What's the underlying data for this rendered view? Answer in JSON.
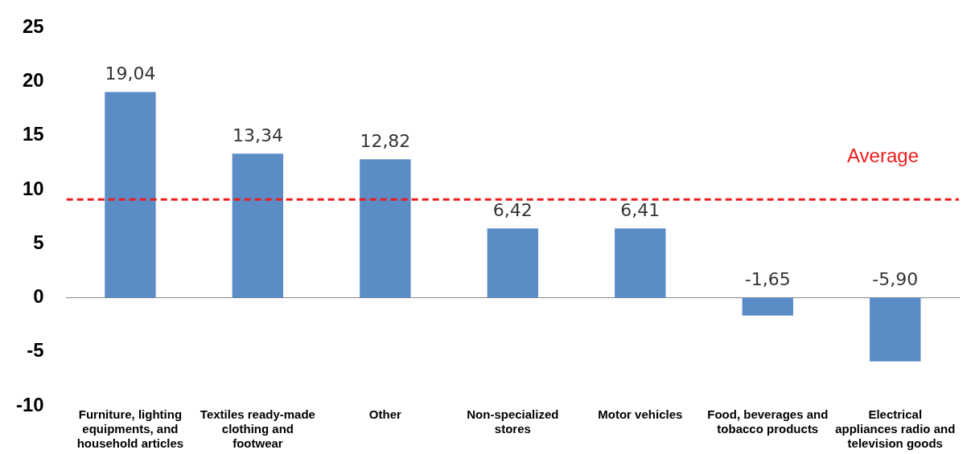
{
  "chart_data": {
    "type": "bar",
    "categories": [
      "Furniture, lighting equipments, and household articles",
      "Textiles ready-made clothing and footwear",
      "Other",
      "Non-specialized stores",
      "Motor vehicles",
      "Food, beverages and tobacco products",
      "Electrical appliances radio and television goods"
    ],
    "values": [
      19.04,
      13.34,
      12.82,
      6.42,
      6.41,
      -1.65,
      -5.9
    ],
    "value_labels": [
      "19,04",
      "13,34",
      "12,82",
      "6,42",
      "6,41",
      "-1,65",
      "-5,90"
    ],
    "color": "#5b8cc6",
    "ylim": [
      -10,
      25
    ],
    "yticks": [
      -10,
      -5,
      0,
      5,
      10,
      15,
      20,
      25
    ],
    "legend": false,
    "ref_lines": [
      {
        "axis": "y",
        "value": 9.1,
        "label": "Average",
        "color": "#ee1c1c",
        "line_style": "dashed"
      }
    ]
  }
}
